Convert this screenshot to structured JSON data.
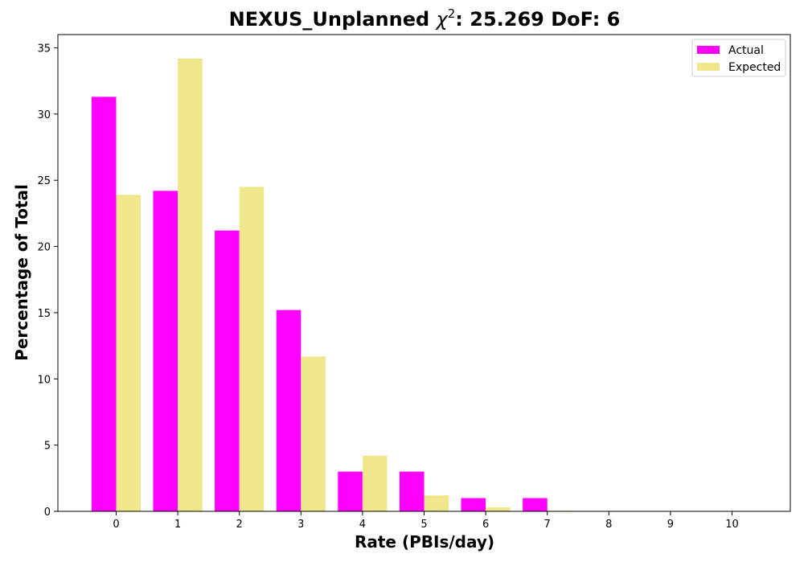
{
  "chart_data": {
    "type": "bar",
    "title_prefix": "NEXUS_Unplanned ",
    "title_chi": "χ",
    "title_sup": "2",
    "title_suffix": ": 25.269 DoF: 6",
    "xlabel": "Rate (PBIs/day)",
    "ylabel": "Percentage of Total",
    "categories": [
      "0",
      "1",
      "2",
      "3",
      "4",
      "5",
      "6",
      "7",
      "8",
      "9",
      "10"
    ],
    "series": [
      {
        "name": "Actual",
        "color": "#ff00ff",
        "values": [
          31.3,
          24.2,
          21.2,
          15.2,
          3.0,
          3.0,
          1.0,
          1.0,
          0.0,
          0.0,
          0.0
        ]
      },
      {
        "name": "Expected",
        "color": "#f0e68c",
        "values": [
          23.9,
          34.2,
          24.5,
          11.7,
          4.2,
          1.2,
          0.3,
          0.05,
          0.0,
          0.0,
          0.0
        ]
      }
    ],
    "ylim": [
      0,
      36
    ],
    "yticks": [
      0,
      5,
      10,
      15,
      20,
      25,
      30,
      35
    ],
    "legend_position": "top-right",
    "grid": false
  }
}
